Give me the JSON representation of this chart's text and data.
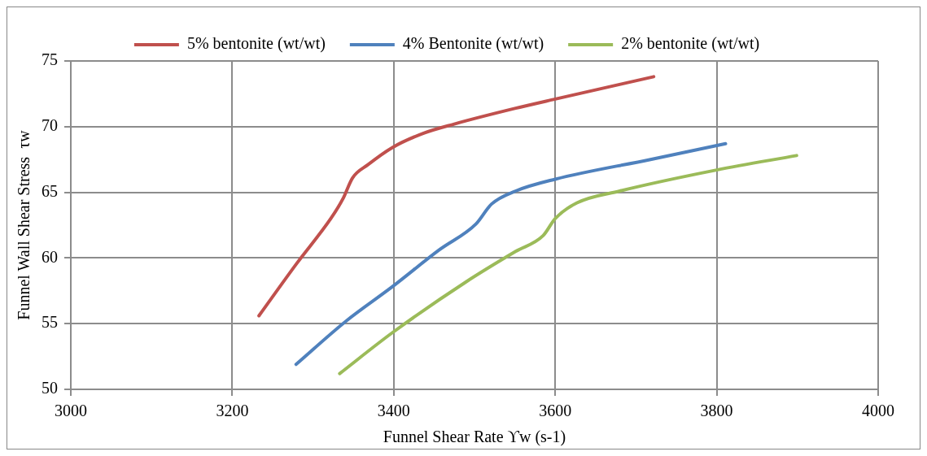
{
  "chart_data": {
    "type": "line",
    "xlabel": "Funnel Shear Rate ϒw (s-1)",
    "ylabel": "Funnel Wall Shear Stress  τw",
    "xlim": [
      3000,
      4000
    ],
    "xticks": [
      3000,
      3200,
      3400,
      3600,
      3800,
      4000
    ],
    "ylim": [
      50,
      75
    ],
    "yticks": [
      50,
      55,
      60,
      65,
      70,
      75
    ],
    "grid": true,
    "legend": "top",
    "marker": "none",
    "line_style": "solid",
    "series": [
      {
        "name": "5% bentonite (wt/wt)",
        "color": "#c0504d",
        "x": [
          3233,
          3280,
          3322,
          3337,
          3349,
          3368,
          3398,
          3437,
          3475,
          3551,
          3600,
          3722
        ],
        "values": [
          55.6,
          59.6,
          63.0,
          64.5,
          66.1,
          67.1,
          68.4,
          69.5,
          70.2,
          71.4,
          72.1,
          73.8
        ]
      },
      {
        "name": "4% Bentonite (wt/wt)",
        "color": "#4f81bd",
        "x": [
          3279,
          3341,
          3398,
          3456,
          3502,
          3521,
          3551,
          3600,
          3718,
          3811
        ],
        "values": [
          51.9,
          55.2,
          57.8,
          60.6,
          62.6,
          64.1,
          65.1,
          66.0,
          67.5,
          68.7
        ]
      },
      {
        "name": "2% bentonite (wt/wt)",
        "color": "#9bbb59",
        "x": [
          3333,
          3398,
          3490,
          3551,
          3585,
          3600,
          3627,
          3680,
          3800,
          3899
        ],
        "values": [
          51.2,
          54.3,
          58.2,
          60.5,
          61.7,
          63.0,
          64.2,
          65.1,
          66.7,
          67.8
        ]
      }
    ]
  }
}
